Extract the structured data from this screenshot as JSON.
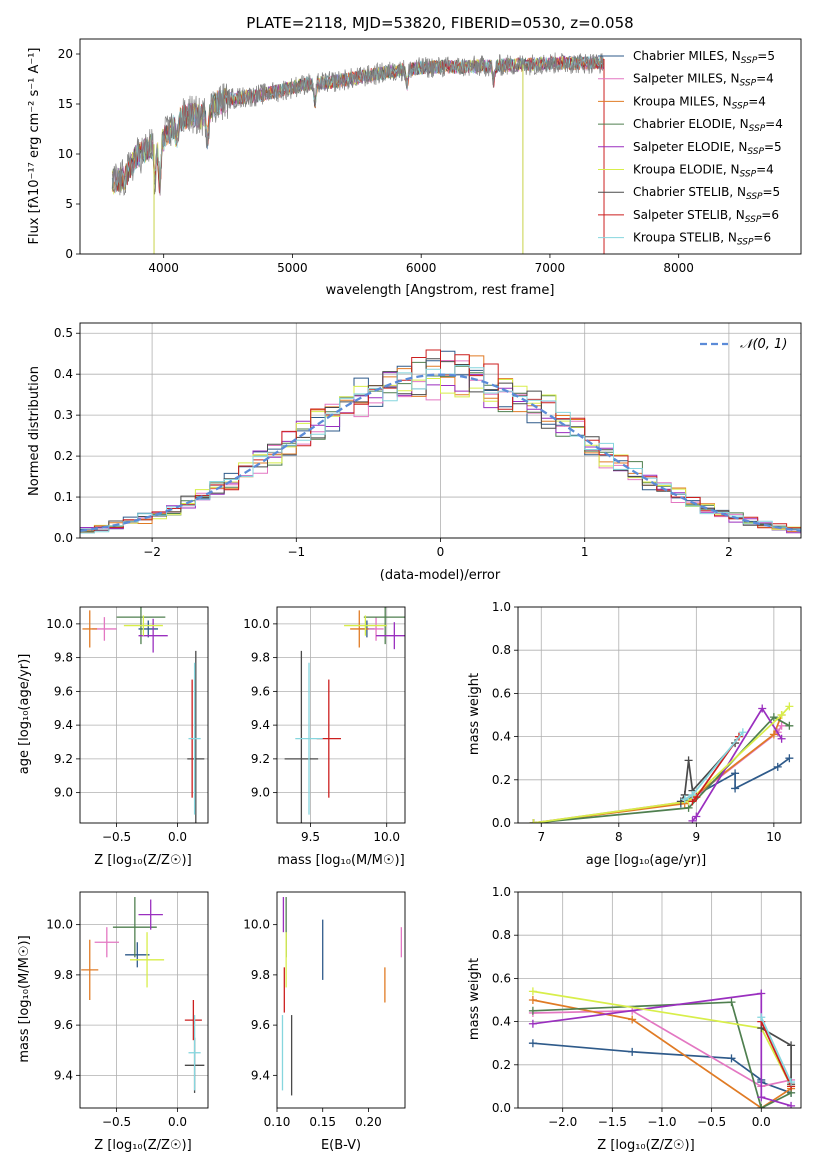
{
  "figure": {
    "title": "PLATE=2118, MJD=53820, FIBERID=0530, z=0.058"
  },
  "models": [
    {
      "name": "Chabrier MILES",
      "nssp": "5",
      "color": "#2e5a8a"
    },
    {
      "name": "Salpeter MILES",
      "nssp": "4",
      "color": "#e377c2"
    },
    {
      "name": "Kroupa MILES",
      "nssp": "4",
      "color": "#e07b25"
    },
    {
      "name": "Chabrier ELODIE",
      "nssp": "4",
      "color": "#4f7f4f"
    },
    {
      "name": "Salpeter ELODIE",
      "nssp": "5",
      "color": "#9a2fbf"
    },
    {
      "name": "Kroupa ELODIE",
      "nssp": "4",
      "color": "#d8ee4a"
    },
    {
      "name": "Chabrier STELIB",
      "nssp": "5",
      "color": "#4a4a4a"
    },
    {
      "name": "Salpeter STELIB",
      "nssp": "6",
      "color": "#cc1f1f"
    },
    {
      "name": "Kroupa STELIB",
      "nssp": "6",
      "color": "#86d6de"
    }
  ],
  "chart_data": [
    {
      "id": "spectrum",
      "type": "line",
      "title": "PLATE=2118, MJD=53820, FIBERID=0530, z=0.058",
      "xlabel": "wavelength [Angstrom, rest frame]",
      "ylabel": "Flux [fλ10⁻¹⁷ erg cm⁻² s⁻¹ A⁻¹]",
      "xlim": [
        3350,
        8950
      ],
      "ylim": [
        0,
        21.5
      ],
      "xticks": [
        4000,
        5000,
        6000,
        7000,
        8000
      ],
      "yticks": [
        0,
        5,
        10,
        15,
        20
      ],
      "continuum": [
        [
          3600,
          7.2
        ],
        [
          3700,
          7.6
        ],
        [
          3780,
          9.6
        ],
        [
          3900,
          10.8
        ],
        [
          4000,
          11.5
        ],
        [
          4100,
          13.2
        ],
        [
          4200,
          14.0
        ],
        [
          4300,
          13.7
        ],
        [
          4400,
          15.0
        ],
        [
          4500,
          15.5
        ],
        [
          4700,
          15.8
        ],
        [
          4900,
          16.3
        ],
        [
          5100,
          17.0
        ],
        [
          5300,
          17.2
        ],
        [
          5500,
          17.6
        ],
        [
          5700,
          18.1
        ],
        [
          5900,
          18.5
        ],
        [
          6100,
          18.7
        ],
        [
          6300,
          18.7
        ],
        [
          6500,
          18.8
        ],
        [
          6700,
          18.9
        ],
        [
          6900,
          19.0
        ],
        [
          7100,
          19.1
        ],
        [
          7300,
          19.1
        ],
        [
          7420,
          19.1
        ]
      ],
      "absorption_dips": [
        [
          3933,
          4.0
        ],
        [
          3969,
          4.5
        ],
        [
          4101,
          2.0
        ],
        [
          4340,
          2.5
        ],
        [
          5175,
          2.0
        ],
        [
          5890,
          1.5
        ],
        [
          6563,
          1.5
        ]
      ],
      "spikes_to_zero": [
        3925,
        6790
      ],
      "grid": false
    },
    {
      "id": "residuals",
      "type": "histogram",
      "xlabel": "(data-model)/error",
      "ylabel": "Normed distribution",
      "xlim": [
        -2.5,
        2.5
      ],
      "ylim": [
        0,
        0.525
      ],
      "xticks": [
        -2,
        -1,
        0,
        1,
        2
      ],
      "yticks": [
        0,
        0.1,
        0.2,
        0.3,
        0.4,
        0.5
      ],
      "bin_width": 0.1,
      "legend": {
        "label": "𝒩(0, 1)",
        "position": "upper right"
      },
      "grid": true
    },
    {
      "id": "age-vs-Z",
      "type": "errorbar",
      "xlabel": "Z [log₁₀(Z/Z☉)]",
      "ylabel": "age  [log₁₀(age/yr)]",
      "xlim": [
        -0.8,
        0.25
      ],
      "ylim": [
        8.82,
        10.1
      ],
      "xticks": [
        -0.5,
        0.0
      ],
      "yticks": [
        9.0,
        9.2,
        9.4,
        9.6,
        9.8,
        10.0
      ],
      "points": [
        {
          "model": "Chabrier MILES",
          "x": -0.24,
          "xerr": 0.08,
          "y": 9.97,
          "yerr": 0.05
        },
        {
          "model": "Salpeter MILES",
          "x": -0.6,
          "xerr": 0.1,
          "y": 9.97,
          "yerr": 0.07
        },
        {
          "model": "Kroupa MILES",
          "x": -0.72,
          "xerr": 0.06,
          "y": 9.97,
          "yerr": 0.11
        },
        {
          "model": "Chabrier ELODIE",
          "x": -0.3,
          "xerr": 0.2,
          "y": 10.04,
          "yerr": 0.16
        },
        {
          "model": "Salpeter ELODIE",
          "x": -0.2,
          "xerr": 0.12,
          "y": 9.93,
          "yerr": 0.1
        },
        {
          "model": "Kroupa ELODIE",
          "x": -0.28,
          "xerr": 0.16,
          "y": 9.99,
          "yerr": 0.06
        },
        {
          "model": "Chabrier STELIB",
          "x": 0.15,
          "xerr": 0.07,
          "y": 9.2,
          "yerr": 0.64
        },
        {
          "model": "Salpeter STELIB",
          "x": 0.12,
          "xerr": 0.01,
          "y": 9.32,
          "yerr": 0.35
        },
        {
          "model": "Kroupa STELIB",
          "x": 0.14,
          "xerr": 0.05,
          "y": 9.32,
          "yerr": 0.45
        }
      ],
      "grid": true
    },
    {
      "id": "age-vs-mass",
      "type": "errorbar",
      "xlabel": "mass [log₁₀(M/M☉)]",
      "ylabel": "",
      "xlim": [
        9.28,
        10.12
      ],
      "ylim": [
        8.82,
        10.1
      ],
      "xticks": [
        9.5,
        10.0
      ],
      "yticks": [
        9.0,
        9.2,
        9.4,
        9.6,
        9.8,
        10.0
      ],
      "points": [
        {
          "model": "Chabrier MILES",
          "x": 9.87,
          "xerr": 0.05,
          "y": 9.97,
          "yerr": 0.05
        },
        {
          "model": "Salpeter MILES",
          "x": 9.93,
          "xerr": 0.05,
          "y": 9.97,
          "yerr": 0.07
        },
        {
          "model": "Kroupa MILES",
          "x": 9.82,
          "xerr": 0.06,
          "y": 9.97,
          "yerr": 0.11
        },
        {
          "model": "Chabrier ELODIE",
          "x": 9.99,
          "xerr": 0.14,
          "y": 10.04,
          "yerr": 0.16
        },
        {
          "model": "Salpeter ELODIE",
          "x": 10.05,
          "xerr": 0.12,
          "y": 9.93,
          "yerr": 0.08
        },
        {
          "model": "Kroupa ELODIE",
          "x": 9.86,
          "xerr": 0.14,
          "y": 9.99,
          "yerr": 0.06
        },
        {
          "model": "Chabrier STELIB",
          "x": 9.44,
          "xerr": 0.11,
          "y": 9.2,
          "yerr": 0.64
        },
        {
          "model": "Salpeter STELIB",
          "x": 9.62,
          "xerr": 0.08,
          "y": 9.32,
          "yerr": 0.35
        },
        {
          "model": "Kroupa STELIB",
          "x": 9.49,
          "xerr": 0.09,
          "y": 9.32,
          "yerr": 0.45
        }
      ],
      "grid": true
    },
    {
      "id": "weight-vs-age",
      "type": "line",
      "xlabel": "age  [log₁₀(age/yr)]",
      "ylabel": "mass weight",
      "xlim": [
        6.7,
        10.35
      ],
      "ylim": [
        0,
        1.0
      ],
      "xticks": [
        7,
        8,
        9,
        10
      ],
      "yticks": [
        0.0,
        0.2,
        0.4,
        0.6,
        0.8,
        1.0
      ],
      "series": [
        {
          "model": "Chabrier MILES",
          "x": [
            6.9,
            8.8,
            9.5,
            9.5,
            10.05,
            10.2
          ],
          "y": [
            0.0,
            0.09,
            0.23,
            0.16,
            0.26,
            0.3
          ]
        },
        {
          "model": "Salpeter MILES",
          "x": [
            6.9,
            8.9,
            10.05,
            10.1
          ],
          "y": [
            0.0,
            0.1,
            0.42,
            0.45
          ]
        },
        {
          "model": "Kroupa MILES",
          "x": [
            6.9,
            8.85,
            10.0,
            10.1
          ],
          "y": [
            0.0,
            0.09,
            0.41,
            0.5
          ]
        },
        {
          "model": "Chabrier ELODIE",
          "x": [
            6.9,
            8.9,
            10.0,
            10.2
          ],
          "y": [
            0.0,
            0.07,
            0.49,
            0.45
          ]
        },
        {
          "model": "Salpeter ELODIE",
          "x": [
            8.95,
            9.0,
            9.85,
            10.1
          ],
          "y": [
            0.01,
            0.03,
            0.53,
            0.39
          ]
        },
        {
          "model": "Kroupa ELODIE",
          "x": [
            6.9,
            8.9,
            10.1,
            10.2
          ],
          "y": [
            0.0,
            0.1,
            0.5,
            0.54
          ]
        },
        {
          "model": "Chabrier STELIB",
          "x": [
            8.8,
            8.85,
            8.9,
            8.95,
            9.5
          ],
          "y": [
            0.1,
            0.13,
            0.29,
            0.15,
            0.37
          ]
        },
        {
          "model": "Salpeter STELIB",
          "x": [
            8.95,
            9.0,
            9.55
          ],
          "y": [
            0.1,
            0.12,
            0.4
          ]
        },
        {
          "model": "Kroupa STELIB",
          "x": [
            8.85,
            8.95,
            9.6
          ],
          "y": [
            0.11,
            0.13,
            0.42
          ]
        }
      ],
      "grid": true
    },
    {
      "id": "mass-vs-Z",
      "type": "errorbar",
      "xlabel": "Z [log₁₀(Z/Z☉)]",
      "ylabel": "mass [log₁₀(M/M☉)]",
      "xlim": [
        -0.8,
        0.25
      ],
      "ylim": [
        9.27,
        10.13
      ],
      "xticks": [
        -0.5,
        0.0
      ],
      "yticks": [
        9.4,
        9.6,
        9.8,
        10.0
      ],
      "points": [
        {
          "model": "Chabrier MILES",
          "x": -0.33,
          "xerr": 0.1,
          "y": 9.88,
          "yerr": 0.05
        },
        {
          "model": "Salpeter MILES",
          "x": -0.58,
          "xerr": 0.1,
          "y": 9.93,
          "yerr": 0.06
        },
        {
          "model": "Kroupa MILES",
          "x": -0.72,
          "xerr": 0.07,
          "y": 9.82,
          "yerr": 0.12
        },
        {
          "model": "Chabrier ELODIE",
          "x": -0.35,
          "xerr": 0.18,
          "y": 9.99,
          "yerr": 0.12
        },
        {
          "model": "Salpeter ELODIE",
          "x": -0.22,
          "xerr": 0.1,
          "y": 10.04,
          "yerr": 0.06
        },
        {
          "model": "Kroupa ELODIE",
          "x": -0.25,
          "xerr": 0.14,
          "y": 9.86,
          "yerr": 0.11
        },
        {
          "model": "Chabrier STELIB",
          "x": 0.14,
          "xerr": 0.08,
          "y": 9.44,
          "yerr": 0.11
        },
        {
          "model": "Salpeter STELIB",
          "x": 0.13,
          "xerr": 0.07,
          "y": 9.62,
          "yerr": 0.08
        },
        {
          "model": "Kroupa STELIB",
          "x": 0.14,
          "xerr": 0.05,
          "y": 9.49,
          "yerr": 0.15
        }
      ],
      "grid": true
    },
    {
      "id": "mass-vs-EBV",
      "type": "errorbar",
      "xlabel": "E(B-V)",
      "ylabel": "",
      "xlim": [
        0.1,
        0.24
      ],
      "ylim": [
        9.27,
        10.13
      ],
      "xticks": [
        0.1,
        0.15,
        0.2
      ],
      "yticks": [
        9.4,
        9.6,
        9.8,
        10.0
      ],
      "points": [
        {
          "model": "Chabrier MILES",
          "x": 0.15,
          "xerr": 0.0,
          "y": 9.9,
          "yerr": 0.12
        },
        {
          "model": "Salpeter MILES",
          "x": 0.236,
          "xerr": 0.0,
          "y": 9.93,
          "yerr": 0.06
        },
        {
          "model": "Kroupa MILES",
          "x": 0.218,
          "xerr": 0.0,
          "y": 9.76,
          "yerr": 0.07
        },
        {
          "model": "Chabrier ELODIE",
          "x": 0.11,
          "xerr": 0.0,
          "y": 9.99,
          "yerr": 0.12
        },
        {
          "model": "Salpeter ELODIE",
          "x": 0.107,
          "xerr": 0.0,
          "y": 10.04,
          "yerr": 0.07
        },
        {
          "model": "Kroupa ELODIE",
          "x": 0.11,
          "xerr": 0.0,
          "y": 9.86,
          "yerr": 0.11
        },
        {
          "model": "Chabrier STELIB",
          "x": 0.116,
          "xerr": 0.0,
          "y": 9.48,
          "yerr": 0.16
        },
        {
          "model": "Salpeter STELIB",
          "x": 0.108,
          "xerr": 0.0,
          "y": 9.74,
          "yerr": 0.09
        },
        {
          "model": "Kroupa STELIB",
          "x": 0.106,
          "xerr": 0.0,
          "y": 9.49,
          "yerr": 0.15
        }
      ],
      "grid": false
    },
    {
      "id": "weight-vs-Z",
      "type": "line",
      "xlabel": "Z [log₁₀(Z/Z☉)]",
      "ylabel": "mass weight",
      "xlim": [
        -2.45,
        0.4
      ],
      "ylim": [
        0,
        1.0
      ],
      "xticks": [
        -2.0,
        -1.5,
        -1.0,
        -0.5,
        0.0
      ],
      "yticks": [
        0.0,
        0.2,
        0.4,
        0.6,
        0.8,
        1.0
      ],
      "series": [
        {
          "model": "Chabrier MILES",
          "x": [
            -2.3,
            -1.3,
            -0.3,
            0.0,
            0.0,
            0.3
          ],
          "y": [
            0.3,
            0.26,
            0.23,
            0.13,
            0.12,
            0.07
          ]
        },
        {
          "model": "Salpeter MILES",
          "x": [
            -2.3,
            -1.3,
            0.0,
            0.3
          ],
          "y": [
            0.44,
            0.45,
            0.1,
            0.13
          ]
        },
        {
          "model": "Kroupa MILES",
          "x": [
            -2.3,
            -1.3,
            0.0,
            0.3
          ],
          "y": [
            0.5,
            0.41,
            0.0,
            0.09
          ]
        },
        {
          "model": "Chabrier ELODIE",
          "x": [
            -2.3,
            -0.3,
            0.0,
            0.3
          ],
          "y": [
            0.45,
            0.49,
            0.0,
            0.07
          ]
        },
        {
          "model": "Salpeter ELODIE",
          "x": [
            -2.3,
            0.0,
            0.0,
            0.3
          ],
          "y": [
            0.39,
            0.53,
            0.05,
            0.01
          ]
        },
        {
          "model": "Kroupa ELODIE",
          "x": [
            -2.3,
            0.0,
            0.3
          ],
          "y": [
            0.54,
            0.37,
            0.1
          ]
        },
        {
          "model": "Chabrier STELIB",
          "x": [
            0.0,
            0.3,
            0.3
          ],
          "y": [
            0.37,
            0.29,
            0.11
          ]
        },
        {
          "model": "Salpeter STELIB",
          "x": [
            0.0,
            0.3
          ],
          "y": [
            0.4,
            0.1
          ]
        },
        {
          "model": "Kroupa STELIB",
          "x": [
            0.0,
            0.3
          ],
          "y": [
            0.42,
            0.12
          ]
        }
      ],
      "grid": true
    }
  ]
}
